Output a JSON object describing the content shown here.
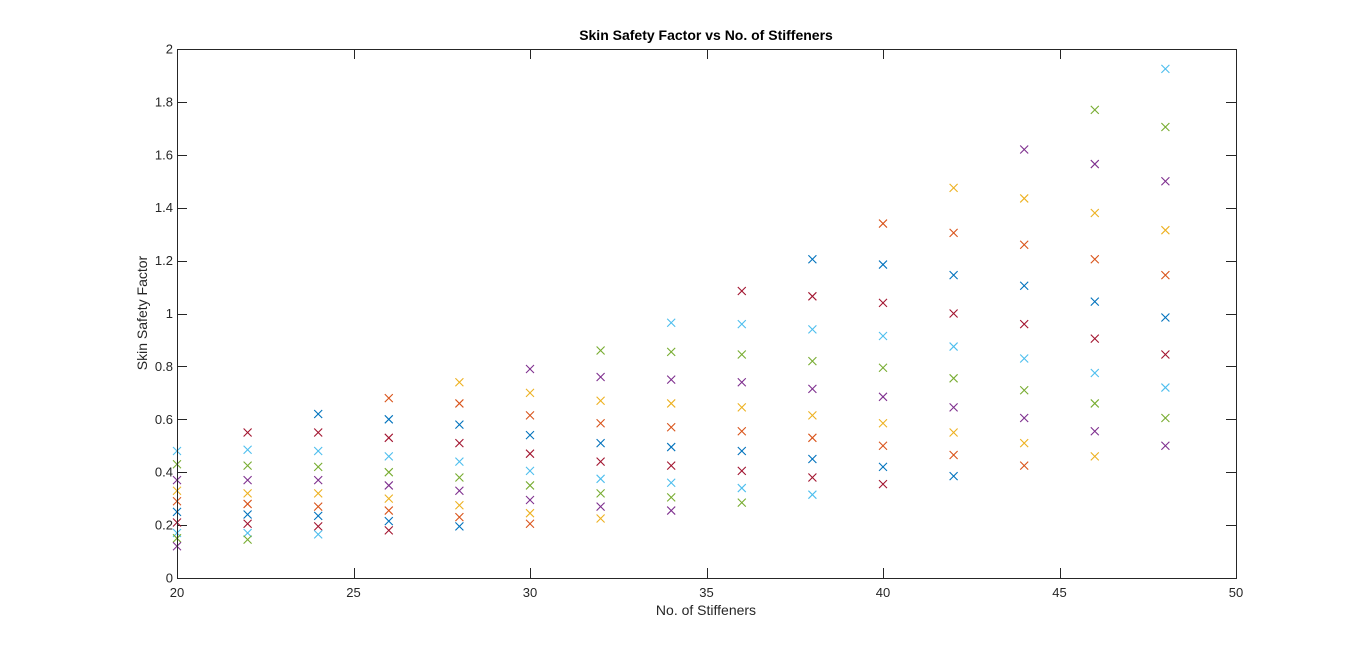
{
  "chart_data": {
    "type": "scatter",
    "title": "Skin Safety Factor vs No. of Stiffeners",
    "xlabel": "No. of Stiffeners",
    "ylabel": "Skin Safety Factor",
    "xlim": [
      20,
      50
    ],
    "ylim": [
      0,
      2
    ],
    "xticks": [
      20,
      25,
      30,
      35,
      40,
      45,
      50
    ],
    "yticks": [
      0,
      0.2,
      0.4,
      0.6,
      0.8,
      1,
      1.2,
      1.4,
      1.6,
      1.8,
      2
    ],
    "xtick_labels": [
      "20",
      "25",
      "30",
      "35",
      "40",
      "45",
      "50"
    ],
    "ytick_labels": [
      "0",
      "0.2",
      "0.4",
      "0.6",
      "0.8",
      "1",
      "1.2",
      "1.4",
      "1.6",
      "1.8",
      "2"
    ],
    "marker": "x",
    "grid": false,
    "legend": false,
    "colors": [
      "#0072BD",
      "#D95319",
      "#EDB120",
      "#7E2F8E",
      "#77AC30",
      "#4DBEEE",
      "#A2142F"
    ],
    "points": [
      {
        "x": 20,
        "y": 0.48,
        "color": "#4DBEEE"
      },
      {
        "x": 20,
        "y": 0.43,
        "color": "#77AC30"
      },
      {
        "x": 20,
        "y": 0.37,
        "color": "#7E2F8E"
      },
      {
        "x": 20,
        "y": 0.33,
        "color": "#EDB120"
      },
      {
        "x": 20,
        "y": 0.29,
        "color": "#D95319"
      },
      {
        "x": 20,
        "y": 0.25,
        "color": "#0072BD"
      },
      {
        "x": 20,
        "y": 0.21,
        "color": "#A2142F"
      },
      {
        "x": 20,
        "y": 0.17,
        "color": "#4DBEEE"
      },
      {
        "x": 20,
        "y": 0.15,
        "color": "#77AC30"
      },
      {
        "x": 20,
        "y": 0.12,
        "color": "#7E2F8E"
      },
      {
        "x": 22,
        "y": 0.55,
        "color": "#A2142F"
      },
      {
        "x": 22,
        "y": 0.485,
        "color": "#4DBEEE"
      },
      {
        "x": 22,
        "y": 0.425,
        "color": "#77AC30"
      },
      {
        "x": 22,
        "y": 0.37,
        "color": "#7E2F8E"
      },
      {
        "x": 22,
        "y": 0.32,
        "color": "#EDB120"
      },
      {
        "x": 22,
        "y": 0.28,
        "color": "#D95319"
      },
      {
        "x": 22,
        "y": 0.24,
        "color": "#0072BD"
      },
      {
        "x": 22,
        "y": 0.205,
        "color": "#A2142F"
      },
      {
        "x": 22,
        "y": 0.17,
        "color": "#4DBEEE"
      },
      {
        "x": 22,
        "y": 0.145,
        "color": "#77AC30"
      },
      {
        "x": 24,
        "y": 0.62,
        "color": "#0072BD"
      },
      {
        "x": 24,
        "y": 0.55,
        "color": "#A2142F"
      },
      {
        "x": 24,
        "y": 0.48,
        "color": "#4DBEEE"
      },
      {
        "x": 24,
        "y": 0.42,
        "color": "#77AC30"
      },
      {
        "x": 24,
        "y": 0.37,
        "color": "#7E2F8E"
      },
      {
        "x": 24,
        "y": 0.32,
        "color": "#EDB120"
      },
      {
        "x": 24,
        "y": 0.27,
        "color": "#D95319"
      },
      {
        "x": 24,
        "y": 0.235,
        "color": "#0072BD"
      },
      {
        "x": 24,
        "y": 0.195,
        "color": "#A2142F"
      },
      {
        "x": 24,
        "y": 0.165,
        "color": "#4DBEEE"
      },
      {
        "x": 26,
        "y": 0.68,
        "color": "#D95319"
      },
      {
        "x": 26,
        "y": 0.6,
        "color": "#0072BD"
      },
      {
        "x": 26,
        "y": 0.53,
        "color": "#A2142F"
      },
      {
        "x": 26,
        "y": 0.46,
        "color": "#4DBEEE"
      },
      {
        "x": 26,
        "y": 0.4,
        "color": "#77AC30"
      },
      {
        "x": 26,
        "y": 0.35,
        "color": "#7E2F8E"
      },
      {
        "x": 26,
        "y": 0.3,
        "color": "#EDB120"
      },
      {
        "x": 26,
        "y": 0.255,
        "color": "#D95319"
      },
      {
        "x": 26,
        "y": 0.215,
        "color": "#0072BD"
      },
      {
        "x": 26,
        "y": 0.18,
        "color": "#A2142F"
      },
      {
        "x": 28,
        "y": 0.74,
        "color": "#EDB120"
      },
      {
        "x": 28,
        "y": 0.66,
        "color": "#D95319"
      },
      {
        "x": 28,
        "y": 0.58,
        "color": "#0072BD"
      },
      {
        "x": 28,
        "y": 0.51,
        "color": "#A2142F"
      },
      {
        "x": 28,
        "y": 0.44,
        "color": "#4DBEEE"
      },
      {
        "x": 28,
        "y": 0.38,
        "color": "#77AC30"
      },
      {
        "x": 28,
        "y": 0.33,
        "color": "#7E2F8E"
      },
      {
        "x": 28,
        "y": 0.275,
        "color": "#EDB120"
      },
      {
        "x": 28,
        "y": 0.23,
        "color": "#D95319"
      },
      {
        "x": 28,
        "y": 0.195,
        "color": "#0072BD"
      },
      {
        "x": 30,
        "y": 0.79,
        "color": "#7E2F8E"
      },
      {
        "x": 30,
        "y": 0.7,
        "color": "#EDB120"
      },
      {
        "x": 30,
        "y": 0.615,
        "color": "#D95319"
      },
      {
        "x": 30,
        "y": 0.54,
        "color": "#0072BD"
      },
      {
        "x": 30,
        "y": 0.47,
        "color": "#A2142F"
      },
      {
        "x": 30,
        "y": 0.405,
        "color": "#4DBEEE"
      },
      {
        "x": 30,
        "y": 0.35,
        "color": "#77AC30"
      },
      {
        "x": 30,
        "y": 0.295,
        "color": "#7E2F8E"
      },
      {
        "x": 30,
        "y": 0.245,
        "color": "#EDB120"
      },
      {
        "x": 30,
        "y": 0.205,
        "color": "#D95319"
      },
      {
        "x": 32,
        "y": 0.86,
        "color": "#77AC30"
      },
      {
        "x": 32,
        "y": 0.76,
        "color": "#7E2F8E"
      },
      {
        "x": 32,
        "y": 0.67,
        "color": "#EDB120"
      },
      {
        "x": 32,
        "y": 0.585,
        "color": "#D95319"
      },
      {
        "x": 32,
        "y": 0.51,
        "color": "#0072BD"
      },
      {
        "x": 32,
        "y": 0.44,
        "color": "#A2142F"
      },
      {
        "x": 32,
        "y": 0.375,
        "color": "#4DBEEE"
      },
      {
        "x": 32,
        "y": 0.32,
        "color": "#77AC30"
      },
      {
        "x": 32,
        "y": 0.27,
        "color": "#7E2F8E"
      },
      {
        "x": 32,
        "y": 0.225,
        "color": "#EDB120"
      },
      {
        "x": 34,
        "y": 0.965,
        "color": "#4DBEEE"
      },
      {
        "x": 34,
        "y": 0.855,
        "color": "#77AC30"
      },
      {
        "x": 34,
        "y": 0.75,
        "color": "#7E2F8E"
      },
      {
        "x": 34,
        "y": 0.66,
        "color": "#EDB120"
      },
      {
        "x": 34,
        "y": 0.57,
        "color": "#D95319"
      },
      {
        "x": 34,
        "y": 0.495,
        "color": "#0072BD"
      },
      {
        "x": 34,
        "y": 0.425,
        "color": "#A2142F"
      },
      {
        "x": 34,
        "y": 0.36,
        "color": "#4DBEEE"
      },
      {
        "x": 34,
        "y": 0.305,
        "color": "#77AC30"
      },
      {
        "x": 34,
        "y": 0.255,
        "color": "#7E2F8E"
      },
      {
        "x": 36,
        "y": 1.085,
        "color": "#A2142F"
      },
      {
        "x": 36,
        "y": 0.96,
        "color": "#4DBEEE"
      },
      {
        "x": 36,
        "y": 0.845,
        "color": "#77AC30"
      },
      {
        "x": 36,
        "y": 0.74,
        "color": "#7E2F8E"
      },
      {
        "x": 36,
        "y": 0.645,
        "color": "#EDB120"
      },
      {
        "x": 36,
        "y": 0.555,
        "color": "#D95319"
      },
      {
        "x": 36,
        "y": 0.48,
        "color": "#0072BD"
      },
      {
        "x": 36,
        "y": 0.405,
        "color": "#A2142F"
      },
      {
        "x": 36,
        "y": 0.34,
        "color": "#4DBEEE"
      },
      {
        "x": 36,
        "y": 0.285,
        "color": "#77AC30"
      },
      {
        "x": 38,
        "y": 1.205,
        "color": "#0072BD"
      },
      {
        "x": 38,
        "y": 1.065,
        "color": "#A2142F"
      },
      {
        "x": 38,
        "y": 0.94,
        "color": "#4DBEEE"
      },
      {
        "x": 38,
        "y": 0.82,
        "color": "#77AC30"
      },
      {
        "x": 38,
        "y": 0.715,
        "color": "#7E2F8E"
      },
      {
        "x": 38,
        "y": 0.615,
        "color": "#EDB120"
      },
      {
        "x": 38,
        "y": 0.53,
        "color": "#D95319"
      },
      {
        "x": 38,
        "y": 0.45,
        "color": "#0072BD"
      },
      {
        "x": 38,
        "y": 0.38,
        "color": "#A2142F"
      },
      {
        "x": 38,
        "y": 0.315,
        "color": "#4DBEEE"
      },
      {
        "x": 40,
        "y": 1.34,
        "color": "#D95319"
      },
      {
        "x": 40,
        "y": 1.185,
        "color": "#0072BD"
      },
      {
        "x": 40,
        "y": 1.04,
        "color": "#A2142F"
      },
      {
        "x": 40,
        "y": 0.915,
        "color": "#4DBEEE"
      },
      {
        "x": 40,
        "y": 0.795,
        "color": "#77AC30"
      },
      {
        "x": 40,
        "y": 0.685,
        "color": "#7E2F8E"
      },
      {
        "x": 40,
        "y": 0.585,
        "color": "#EDB120"
      },
      {
        "x": 40,
        "y": 0.5,
        "color": "#D95319"
      },
      {
        "x": 40,
        "y": 0.42,
        "color": "#0072BD"
      },
      {
        "x": 40,
        "y": 0.355,
        "color": "#A2142F"
      },
      {
        "x": 42,
        "y": 1.475,
        "color": "#EDB120"
      },
      {
        "x": 42,
        "y": 1.305,
        "color": "#D95319"
      },
      {
        "x": 42,
        "y": 1.145,
        "color": "#0072BD"
      },
      {
        "x": 42,
        "y": 1.0,
        "color": "#A2142F"
      },
      {
        "x": 42,
        "y": 0.875,
        "color": "#4DBEEE"
      },
      {
        "x": 42,
        "y": 0.755,
        "color": "#77AC30"
      },
      {
        "x": 42,
        "y": 0.645,
        "color": "#7E2F8E"
      },
      {
        "x": 42,
        "y": 0.55,
        "color": "#EDB120"
      },
      {
        "x": 42,
        "y": 0.465,
        "color": "#D95319"
      },
      {
        "x": 42,
        "y": 0.385,
        "color": "#0072BD"
      },
      {
        "x": 44,
        "y": 1.62,
        "color": "#7E2F8E"
      },
      {
        "x": 44,
        "y": 1.435,
        "color": "#EDB120"
      },
      {
        "x": 44,
        "y": 1.26,
        "color": "#D95319"
      },
      {
        "x": 44,
        "y": 1.105,
        "color": "#0072BD"
      },
      {
        "x": 44,
        "y": 0.96,
        "color": "#A2142F"
      },
      {
        "x": 44,
        "y": 0.83,
        "color": "#4DBEEE"
      },
      {
        "x": 44,
        "y": 0.71,
        "color": "#77AC30"
      },
      {
        "x": 44,
        "y": 0.605,
        "color": "#7E2F8E"
      },
      {
        "x": 44,
        "y": 0.51,
        "color": "#EDB120"
      },
      {
        "x": 44,
        "y": 0.425,
        "color": "#D95319"
      },
      {
        "x": 46,
        "y": 1.77,
        "color": "#77AC30"
      },
      {
        "x": 46,
        "y": 1.565,
        "color": "#7E2F8E"
      },
      {
        "x": 46,
        "y": 1.38,
        "color": "#EDB120"
      },
      {
        "x": 46,
        "y": 1.205,
        "color": "#D95319"
      },
      {
        "x": 46,
        "y": 1.045,
        "color": "#0072BD"
      },
      {
        "x": 46,
        "y": 0.905,
        "color": "#A2142F"
      },
      {
        "x": 46,
        "y": 0.775,
        "color": "#4DBEEE"
      },
      {
        "x": 46,
        "y": 0.66,
        "color": "#77AC30"
      },
      {
        "x": 46,
        "y": 0.555,
        "color": "#7E2F8E"
      },
      {
        "x": 46,
        "y": 0.46,
        "color": "#EDB120"
      },
      {
        "x": 48,
        "y": 1.925,
        "color": "#4DBEEE"
      },
      {
        "x": 48,
        "y": 1.705,
        "color": "#77AC30"
      },
      {
        "x": 48,
        "y": 1.5,
        "color": "#7E2F8E"
      },
      {
        "x": 48,
        "y": 1.315,
        "color": "#EDB120"
      },
      {
        "x": 48,
        "y": 1.145,
        "color": "#D95319"
      },
      {
        "x": 48,
        "y": 0.985,
        "color": "#0072BD"
      },
      {
        "x": 48,
        "y": 0.845,
        "color": "#A2142F"
      },
      {
        "x": 48,
        "y": 0.72,
        "color": "#4DBEEE"
      },
      {
        "x": 48,
        "y": 0.605,
        "color": "#77AC30"
      },
      {
        "x": 48,
        "y": 0.5,
        "color": "#7E2F8E"
      }
    ]
  }
}
